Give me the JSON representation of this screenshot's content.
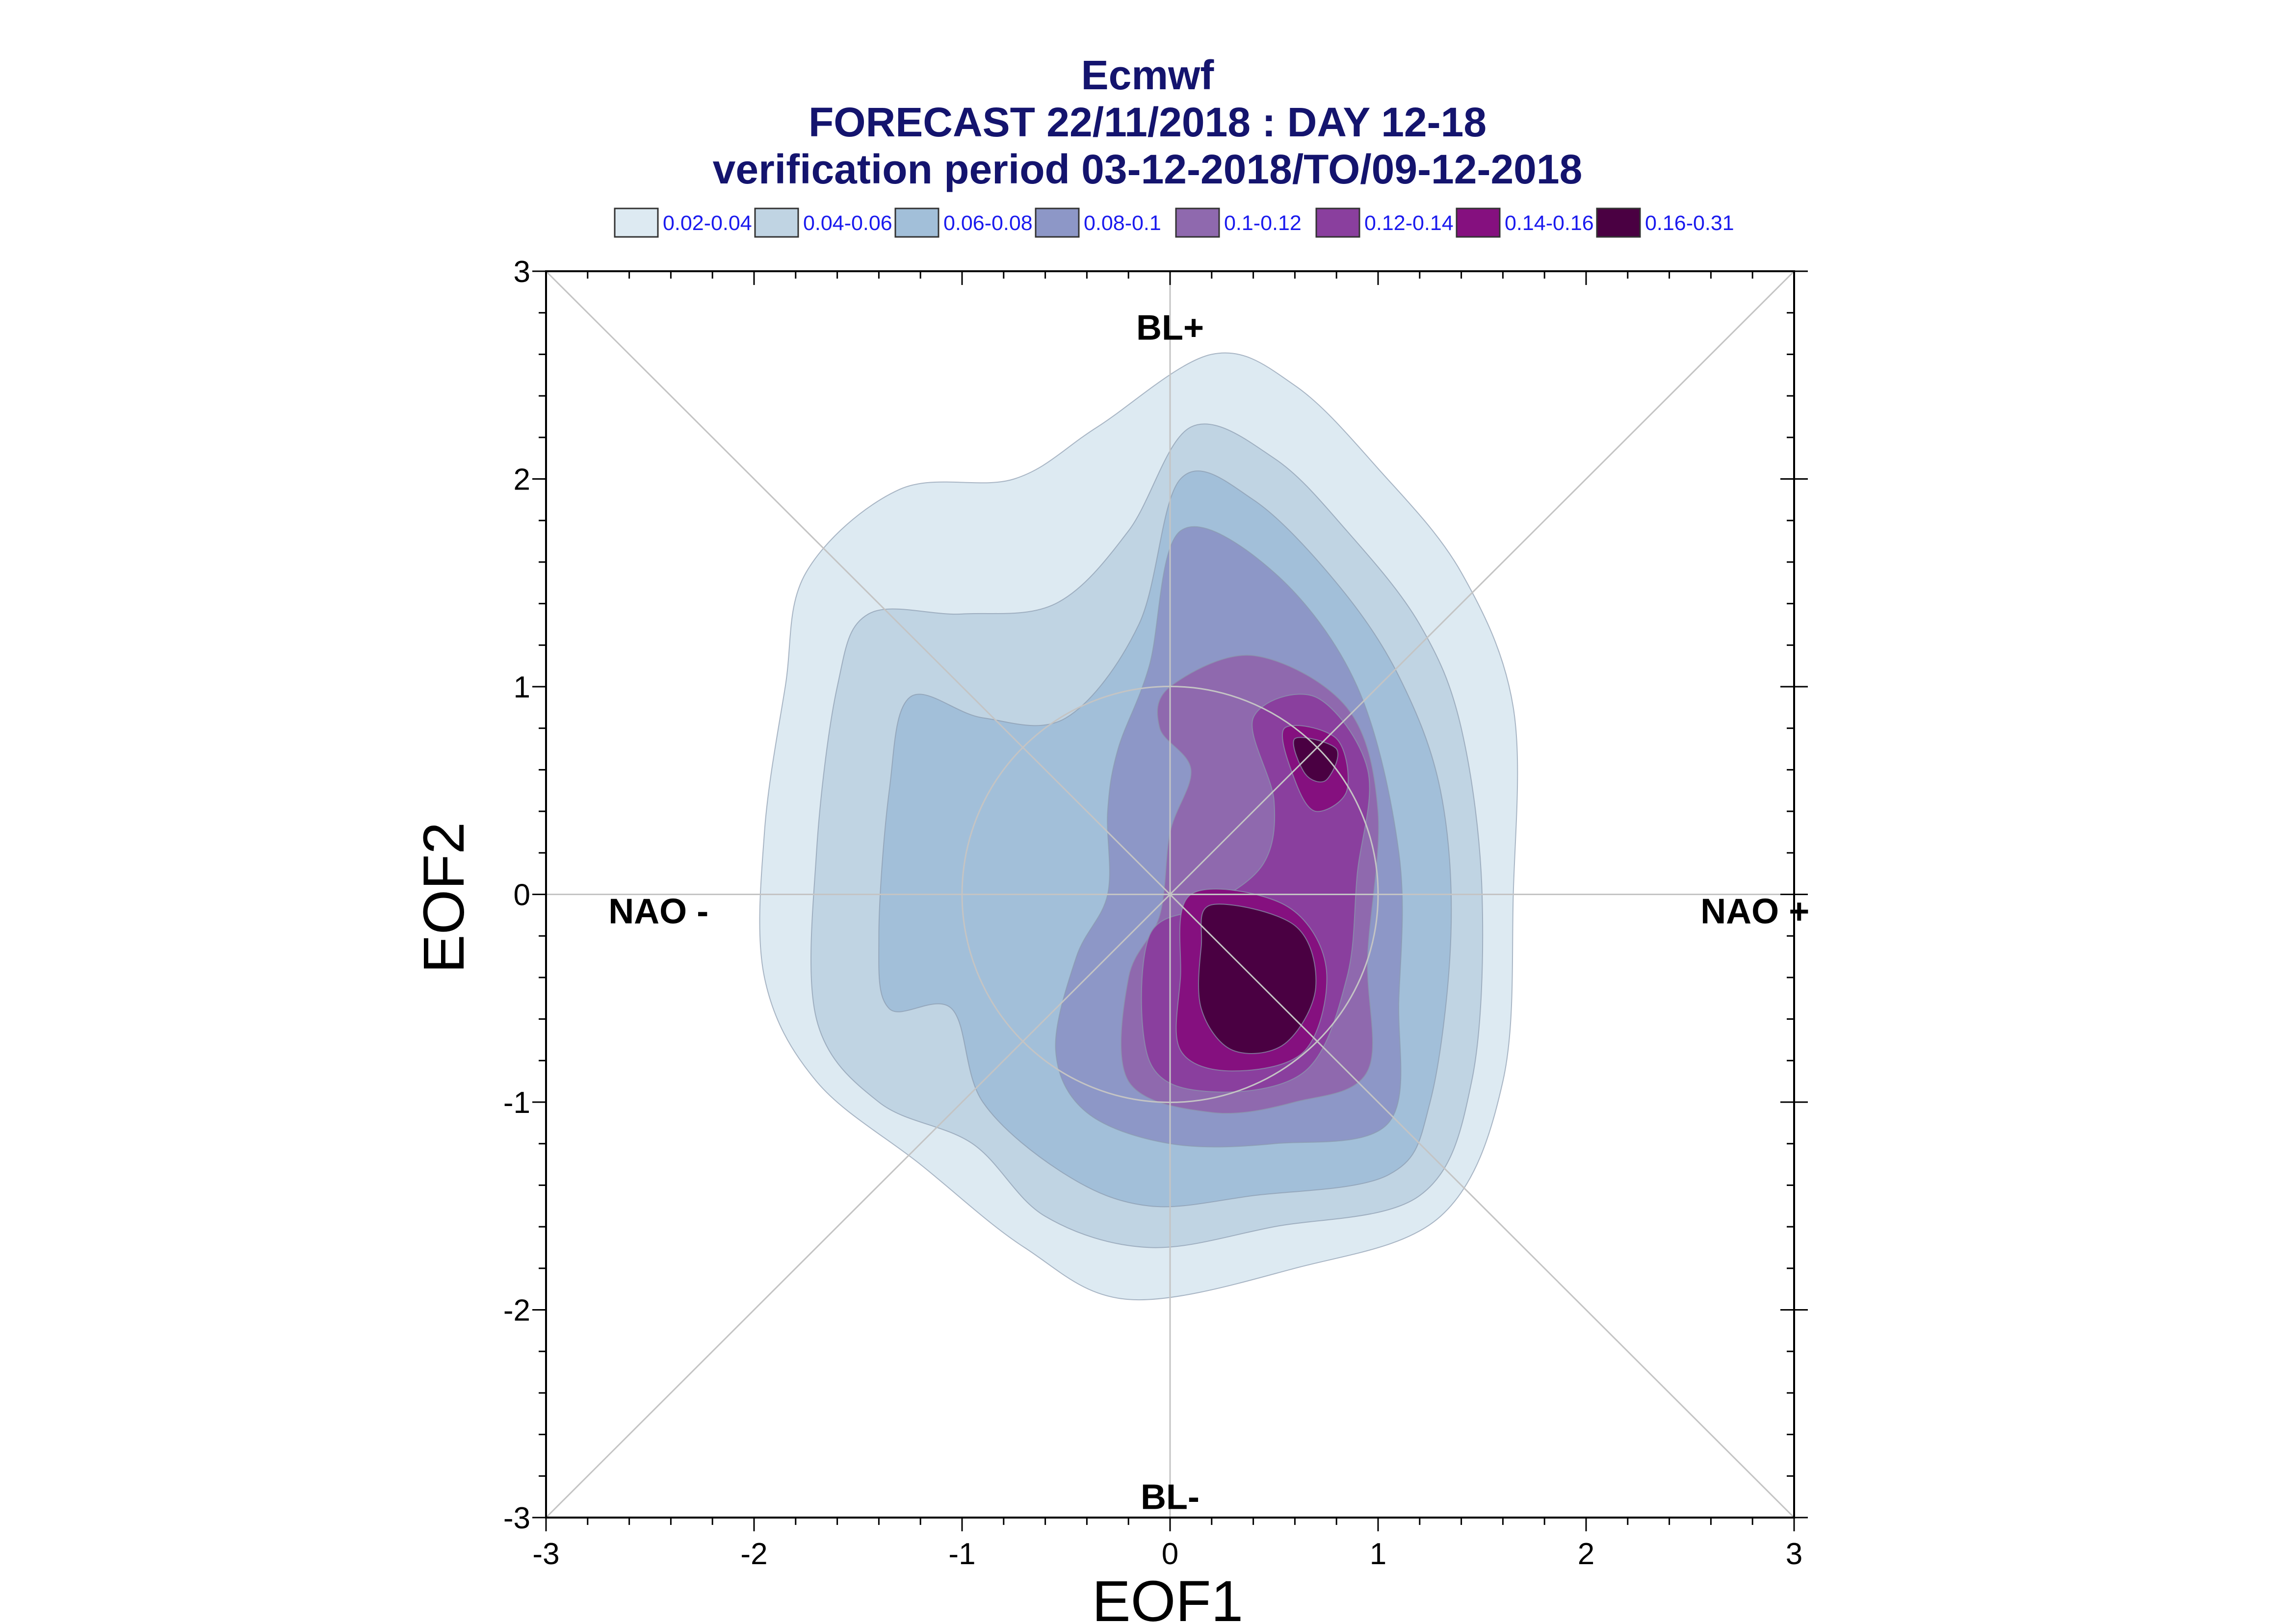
{
  "chart_data": {
    "type": "contour",
    "title_lines": [
      "Ecmwf",
      "FORECAST 22/11/2018 : DAY 12-18",
      "verification period 03-12-2018/TO/09-12-2018"
    ],
    "xlabel": "EOF1",
    "ylabel": "EOF2",
    "xlim": [
      -3,
      3
    ],
    "ylim": [
      -3,
      3
    ],
    "x_ticks": [
      "-3",
      "-2",
      "-1",
      "0",
      "1",
      "2",
      "3"
    ],
    "y_ticks": [
      "3",
      "2",
      "1",
      "0",
      "-1",
      "-2",
      "-3"
    ],
    "grid": false,
    "reference_lines": "diagonals, axes through origin, unit circle",
    "legend_position": "top",
    "levels": [
      {
        "label": "0.02-0.04",
        "color": "#ddeaf2"
      },
      {
        "label": "0.04-0.06",
        "color": "#c0d4e3"
      },
      {
        "label": "0.06-0.08",
        "color": "#a2bfd9"
      },
      {
        "label": "0.08-0.1",
        "color": "#8d97c7"
      },
      {
        "label": "0.1-0.12",
        "color": "#8f69ae"
      },
      {
        "label": "0.12-0.14",
        "color": "#8a3f9e"
      },
      {
        "label": "0.14-0.16",
        "color": "#85107f"
      },
      {
        "label": "0.16-0.31",
        "color": "#4a0042"
      }
    ],
    "density_contours": [
      [
        [
          0.2,
          2.6
        ],
        [
          0.6,
          2.45
        ],
        [
          1.0,
          2.05
        ],
        [
          1.4,
          1.55
        ],
        [
          1.65,
          0.9
        ],
        [
          1.65,
          0.0
        ],
        [
          1.6,
          -0.9
        ],
        [
          1.3,
          -1.55
        ],
        [
          0.6,
          -1.8
        ],
        [
          -0.2,
          -1.95
        ],
        [
          -0.7,
          -1.7
        ],
        [
          -1.2,
          -1.3
        ],
        [
          -1.7,
          -0.9
        ],
        [
          -1.95,
          -0.4
        ],
        [
          -1.95,
          0.3
        ],
        [
          -1.85,
          1.0
        ],
        [
          -1.75,
          1.55
        ],
        [
          -1.3,
          1.95
        ],
        [
          -0.75,
          2.0
        ],
        [
          -0.35,
          2.25
        ]
      ],
      [
        [
          0.1,
          2.25
        ],
        [
          0.5,
          2.1
        ],
        [
          0.85,
          1.75
        ],
        [
          1.2,
          1.3
        ],
        [
          1.4,
          0.8
        ],
        [
          1.5,
          0.0
        ],
        [
          1.45,
          -0.9
        ],
        [
          1.2,
          -1.45
        ],
        [
          0.5,
          -1.6
        ],
        [
          -0.1,
          -1.7
        ],
        [
          -0.6,
          -1.55
        ],
        [
          -0.95,
          -1.2
        ],
        [
          -1.4,
          -1.0
        ],
        [
          -1.7,
          -0.6
        ],
        [
          -1.7,
          0.2
        ],
        [
          -1.6,
          1.0
        ],
        [
          -1.45,
          1.35
        ],
        [
          -1.0,
          1.35
        ],
        [
          -0.55,
          1.4
        ],
        [
          -0.2,
          1.75
        ]
      ],
      [
        [
          0.05,
          2.0
        ],
        [
          0.4,
          1.9
        ],
        [
          0.8,
          1.5
        ],
        [
          1.1,
          1.05
        ],
        [
          1.3,
          0.5
        ],
        [
          1.35,
          -0.2
        ],
        [
          1.25,
          -1.0
        ],
        [
          1.05,
          -1.35
        ],
        [
          0.4,
          -1.45
        ],
        [
          -0.1,
          -1.5
        ],
        [
          -0.5,
          -1.35
        ],
        [
          -0.9,
          -1.0
        ],
        [
          -1.05,
          -0.55
        ],
        [
          -1.35,
          -0.55
        ],
        [
          -1.4,
          -0.2
        ],
        [
          -1.35,
          0.5
        ],
        [
          -1.25,
          0.95
        ],
        [
          -0.9,
          0.85
        ],
        [
          -0.5,
          0.85
        ],
        [
          -0.15,
          1.3
        ]
      ],
      [
        [
          0.05,
          1.75
        ],
        [
          0.5,
          1.55
        ],
        [
          0.9,
          1.0
        ],
        [
          1.1,
          0.2
        ],
        [
          1.1,
          -0.5
        ],
        [
          1.05,
          -1.1
        ],
        [
          0.5,
          -1.2
        ],
        [
          0.0,
          -1.2
        ],
        [
          -0.4,
          -1.05
        ],
        [
          -0.55,
          -0.75
        ],
        [
          -0.45,
          -0.3
        ],
        [
          -0.3,
          0.0
        ],
        [
          -0.3,
          0.4
        ],
        [
          -0.25,
          0.7
        ],
        [
          -0.1,
          1.1
        ]
      ],
      [
        [
          0.0,
          1.0
        ],
        [
          0.4,
          1.15
        ],
        [
          0.85,
          0.9
        ],
        [
          1.0,
          0.4
        ],
        [
          0.95,
          -0.3
        ],
        [
          0.95,
          -0.85
        ],
        [
          0.6,
          -1.0
        ],
        [
          0.2,
          -1.05
        ],
        [
          -0.2,
          -0.9
        ],
        [
          -0.2,
          -0.4
        ],
        [
          -0.05,
          -0.1
        ],
        [
          0.0,
          0.3
        ],
        [
          0.1,
          0.6
        ],
        [
          -0.05,
          0.8
        ]
      ],
      [
        [
          0.4,
          0.85
        ],
        [
          0.7,
          0.95
        ],
        [
          0.95,
          0.6
        ],
        [
          0.9,
          0.1
        ],
        [
          0.85,
          -0.4
        ],
        [
          0.65,
          -0.85
        ],
        [
          0.2,
          -0.95
        ],
        [
          -0.1,
          -0.8
        ],
        [
          -0.1,
          -0.2
        ],
        [
          0.2,
          -0.05
        ],
        [
          0.45,
          0.15
        ],
        [
          0.5,
          0.45
        ]
      ],
      [
        [
          0.55,
          0.8
        ],
        [
          0.8,
          0.75
        ],
        [
          0.85,
          0.5
        ],
        [
          0.7,
          0.4
        ],
        [
          0.6,
          0.55
        ]
      ],
      [
        [
          0.1,
          0.0
        ],
        [
          0.55,
          -0.05
        ],
        [
          0.75,
          -0.35
        ],
        [
          0.65,
          -0.75
        ],
        [
          0.3,
          -0.85
        ],
        [
          0.05,
          -0.75
        ],
        [
          0.05,
          -0.4
        ]
      ],
      [
        [
          0.6,
          0.75
        ],
        [
          0.8,
          0.7
        ],
        [
          0.75,
          0.55
        ],
        [
          0.65,
          0.58
        ]
      ],
      [
        [
          0.2,
          -0.05
        ],
        [
          0.6,
          -0.15
        ],
        [
          0.7,
          -0.45
        ],
        [
          0.55,
          -0.72
        ],
        [
          0.3,
          -0.75
        ],
        [
          0.15,
          -0.55
        ],
        [
          0.15,
          -0.25
        ]
      ]
    ],
    "annotations": [
      {
        "text": "BL+",
        "x": 0.0,
        "y": 2.73
      },
      {
        "text": "BL-",
        "x": 0.0,
        "y": -2.9
      },
      {
        "text": "NAO -",
        "x": -2.7,
        "y": -0.08
      },
      {
        "text": "NAO +",
        "x": 2.55,
        "y": -0.08
      }
    ]
  }
}
